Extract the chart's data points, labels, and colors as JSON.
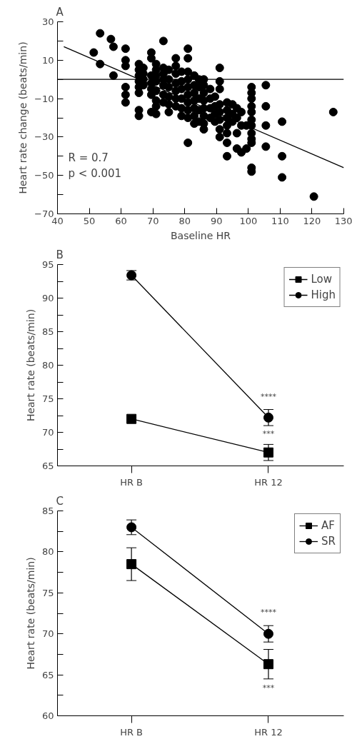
{
  "chart_data": [
    {
      "type": "scatter",
      "title": "A",
      "xlabel": "Baseline HR",
      "ylabel": "Heart rate change (beats/min)",
      "xlim": [
        40,
        130
      ],
      "xticks": [
        40,
        50,
        60,
        70,
        80,
        90,
        100,
        110,
        120,
        130
      ],
      "ylim": [
        -70,
        30
      ],
      "yticks": [
        -70,
        {
          "value": -60,
          "label": null
        },
        -50,
        {
          "value": -40,
          "label": null
        },
        -30,
        {
          "value": -20,
          "label": null
        },
        -10,
        {
          "value": 0,
          "label": null
        },
        10,
        {
          "value": 20,
          "label": null
        },
        30
      ],
      "grid": false,
      "legend": false,
      "series": [
        {
          "type": "scatter",
          "color": "#000000",
          "marker": "circle",
          "x": [
            51.4,
            53.4,
            53.4,
            56.8,
            57.6,
            57.6,
            61.4,
            61.4,
            61.4,
            61.4,
            61.4,
            61.4,
            65.6,
            65.6,
            65.6,
            65.6,
            65.6,
            65.6,
            65.6,
            65.6,
            67,
            67,
            67,
            67,
            69.5,
            69.5,
            69.5,
            69.5,
            69.5,
            69.5,
            69.5,
            71,
            71,
            71,
            71,
            71,
            71,
            71,
            71,
            73.3,
            73.3,
            73.3,
            73.3,
            73.3,
            73.3,
            73.3,
            75,
            75,
            75,
            75,
            75,
            75,
            77.2,
            77.2,
            77.2,
            77.2,
            77.2,
            77.2,
            77.2,
            79,
            79,
            79,
            79,
            79,
            79,
            81,
            81,
            81,
            81,
            81,
            81,
            81,
            81,
            81,
            81,
            83,
            83,
            83,
            83,
            83,
            83,
            83,
            84.5,
            84.5,
            84.5,
            84.5,
            84.5,
            86,
            86,
            86,
            86,
            86,
            86,
            86,
            86,
            88,
            88,
            88,
            88,
            89.5,
            89.5,
            89.5,
            89.5,
            91,
            91,
            91,
            91,
            91,
            91,
            91,
            91,
            93.3,
            93.3,
            93.3,
            93.3,
            93.3,
            93.3,
            93.3,
            95,
            95,
            95,
            96.4,
            96.4,
            96.4,
            96.4,
            97.8,
            97.8,
            97.8,
            99.4,
            99.4,
            101,
            101,
            101,
            101,
            101,
            101,
            101,
            101,
            101,
            101,
            101,
            101,
            105.5,
            105.5,
            105.5,
            105.5,
            110.6,
            110.6,
            110.6,
            120.6,
            126.7
          ],
          "values": [
            14,
            24,
            8,
            21,
            17,
            2,
            16,
            10,
            7,
            -4,
            -8,
            -12,
            8,
            5,
            2,
            -1,
            -4,
            -7,
            -16,
            -19,
            6,
            3,
            0,
            -3,
            14,
            11,
            2,
            -2,
            -5,
            -8,
            -17,
            8,
            5,
            2,
            -1,
            -6,
            -11,
            -14,
            -18,
            20,
            6,
            3,
            0,
            -3,
            -8,
            -12,
            5,
            0,
            -4,
            -9,
            -13,
            -17,
            11,
            7,
            3,
            -2,
            -6,
            -10,
            -14,
            4,
            -1,
            -5,
            -10,
            -15,
            -19,
            16,
            11,
            4,
            0,
            -4,
            -8,
            -12,
            -16,
            -20,
            -33,
            2,
            -3,
            -7,
            -11,
            -15,
            -19,
            -23,
            0,
            -4,
            -10,
            -16,
            -22,
            0,
            -3,
            -7,
            -11,
            -15,
            -19,
            -23,
            -26,
            -5,
            -10,
            -15,
            -20,
            -9,
            -14,
            -18,
            -22,
            6,
            -1,
            -5,
            -13,
            -17,
            -21,
            -26,
            -30,
            -12,
            -16,
            -20,
            -24,
            -28,
            -33,
            -40,
            -13,
            -18,
            -22,
            -15,
            -20,
            -28,
            -36,
            -17,
            -24,
            -38,
            -24,
            -36,
            -4,
            -7,
            -10,
            -14,
            -17,
            -21,
            -24,
            -28,
            -31,
            -33,
            -46,
            -48,
            -3,
            -14,
            -24,
            -35,
            -22,
            -40,
            -51,
            -61,
            -17
          ]
        },
        {
          "type": "line",
          "color": "#000000",
          "marker": "none",
          "x": [
            42,
            130
          ],
          "values": [
            17,
            -46
          ]
        }
      ],
      "ref_lines": [
        {
          "axis": "y",
          "value": 0,
          "color": "#000000"
        }
      ],
      "annotations": [
        "R = 0.7",
        "p < 0.001"
      ]
    },
    {
      "type": "line",
      "title": "B",
      "ylabel": "Heart rate (beats/min)",
      "categories": [
        "HR B",
        "HR 12"
      ],
      "ylim": [
        65,
        95
      ],
      "yticks": [
        65,
        {
          "value": 67.5,
          "label": null
        },
        70,
        {
          "value": 72.5,
          "label": null
        },
        75,
        {
          "value": 77.5,
          "label": null
        },
        80,
        {
          "value": 82.5,
          "label": null
        },
        85,
        {
          "value": 87.5,
          "label": null
        },
        90,
        {
          "value": 92.5,
          "label": null
        },
        95
      ],
      "grid": false,
      "legend": "top right",
      "series": [
        {
          "name": "Low",
          "color": "#000000",
          "marker": "square",
          "values": [
            72,
            67
          ],
          "errors": [
            null,
            1.2
          ]
        },
        {
          "name": "High",
          "color": "#000000",
          "marker": "circle",
          "values": [
            93.4,
            72.2
          ],
          "errors": [
            0.7,
            1.2
          ]
        }
      ],
      "annotations": [
        "****",
        "***"
      ]
    },
    {
      "type": "line",
      "title": "C",
      "ylabel": "Heart rate (beats/min)",
      "categories": [
        "HR B",
        "HR 12"
      ],
      "ylim": [
        60,
        85
      ],
      "yticks": [
        60,
        {
          "value": 62.5,
          "label": null
        },
        65,
        {
          "value": 67.5,
          "label": null
        },
        70,
        {
          "value": 72.5,
          "label": null
        },
        75,
        {
          "value": 77.5,
          "label": null
        },
        80,
        {
          "value": 82.5,
          "label": null
        },
        85
      ],
      "grid": false,
      "legend": "top right",
      "series": [
        {
          "name": "AF",
          "color": "#000000",
          "marker": "square",
          "values": [
            78.5,
            66.3
          ],
          "errors": [
            2,
            1.8
          ]
        },
        {
          "name": "SR",
          "color": "#000000",
          "marker": "circle",
          "values": [
            83,
            70
          ],
          "errors": [
            0.9,
            1.0
          ]
        }
      ],
      "annotations": [
        "****",
        "***"
      ]
    }
  ]
}
